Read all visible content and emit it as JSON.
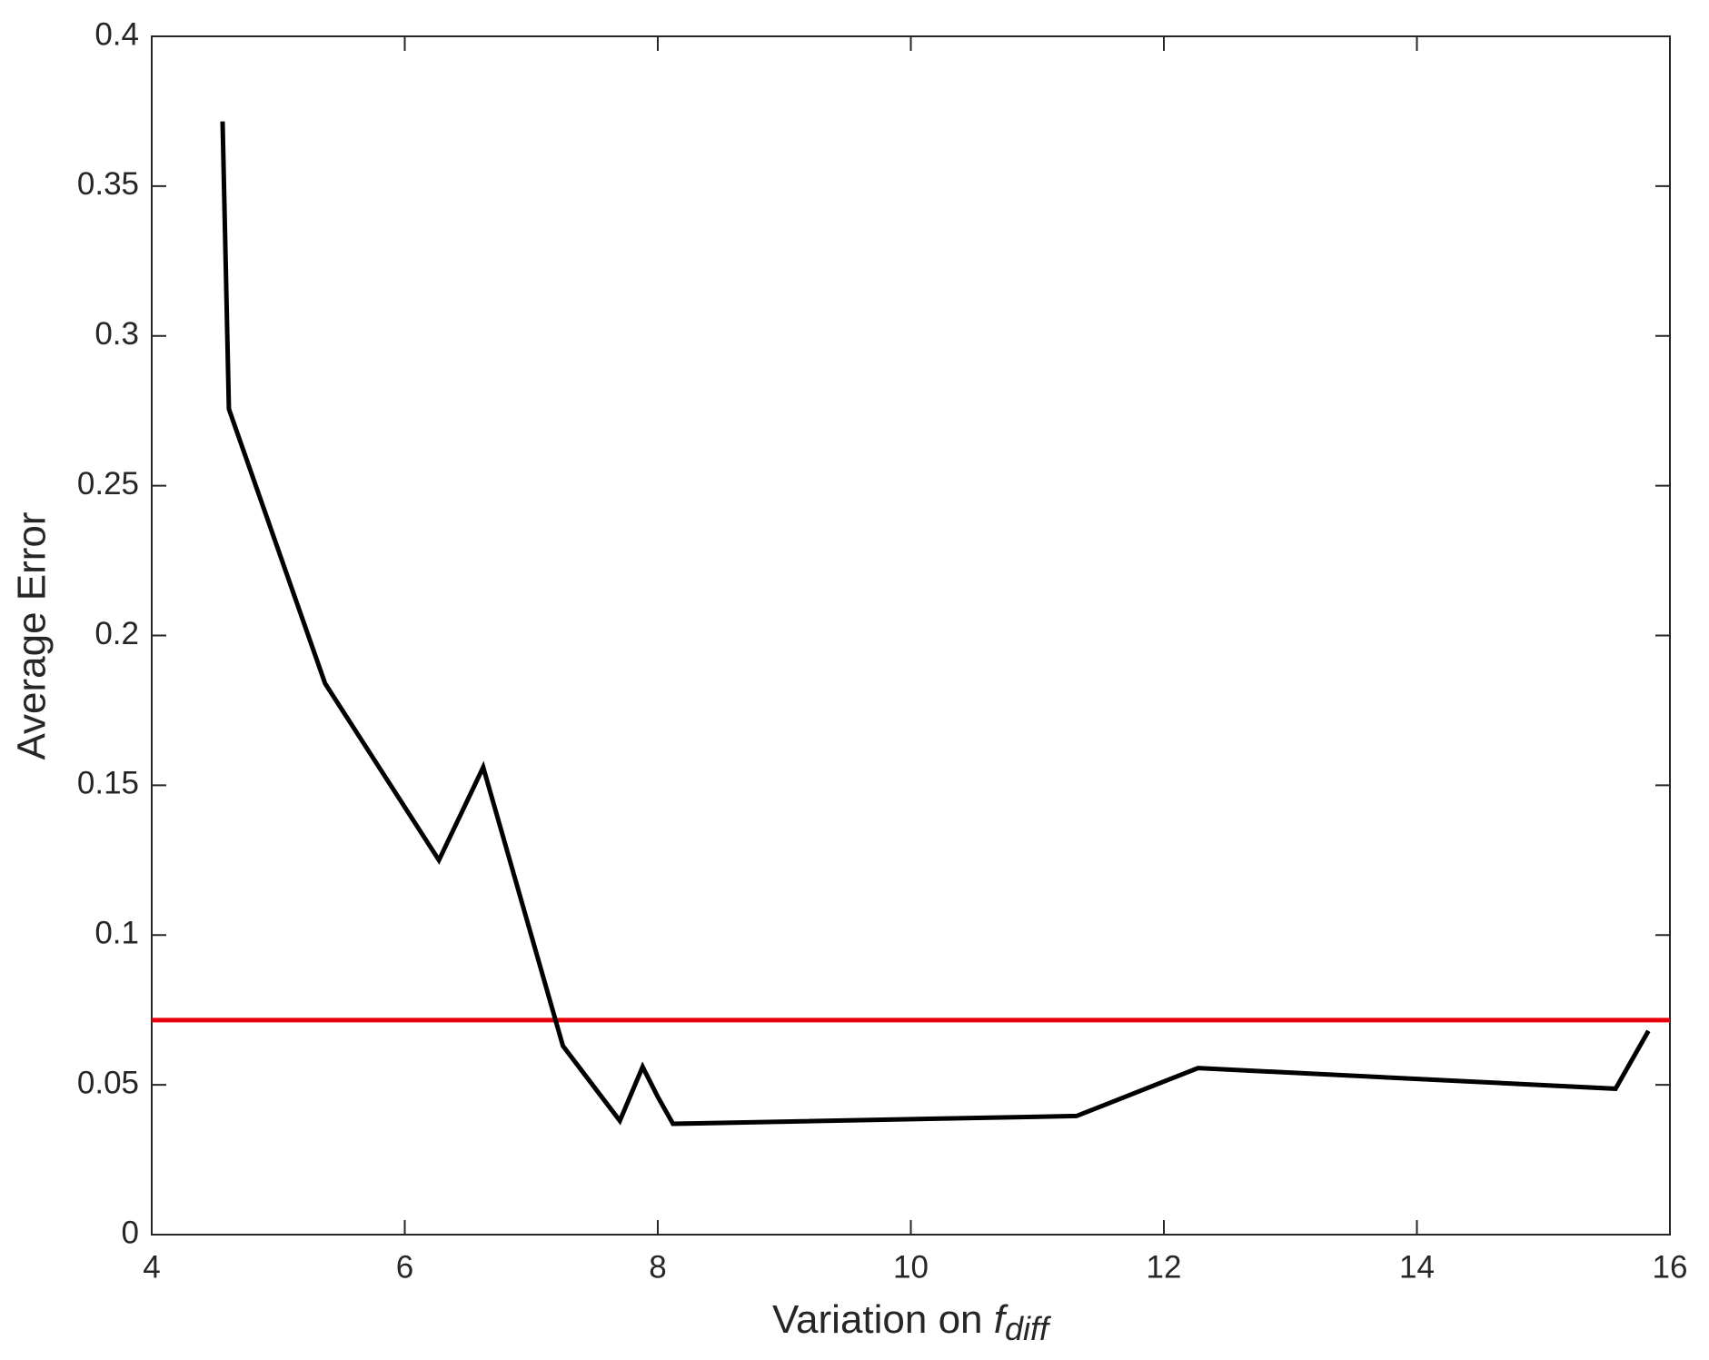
{
  "chart_data": {
    "type": "line",
    "x_label": {
      "text": "Variation on ",
      "symbol": "f",
      "subscript": "diff"
    },
    "y_label": "Average Error",
    "x": [
      4.56,
      4.61,
      5.37,
      6.27,
      6.62,
      7.25,
      7.7,
      7.88,
      8.0,
      8.12,
      11.31,
      12.27,
      15.57,
      15.83
    ],
    "series": [
      {
        "color": "#000000",
        "values": [
          0.3716,
          0.2756,
          0.184,
          0.125,
          0.156,
          0.063,
          0.038,
          0.056,
          0.046,
          0.037,
          0.0396,
          0.0556,
          0.0487,
          0.068
        ]
      }
    ],
    "hline": {
      "value": 0.0716,
      "color": "#e8000b"
    },
    "xlim": [
      4,
      16
    ],
    "xticks": [
      4,
      6,
      8,
      10,
      12,
      14,
      16
    ],
    "ylim": [
      0,
      0.4
    ],
    "yticks": [
      0,
      0.05,
      0.1,
      0.15,
      0.2,
      0.25,
      0.3,
      0.35,
      0.4
    ],
    "grid": false
  }
}
